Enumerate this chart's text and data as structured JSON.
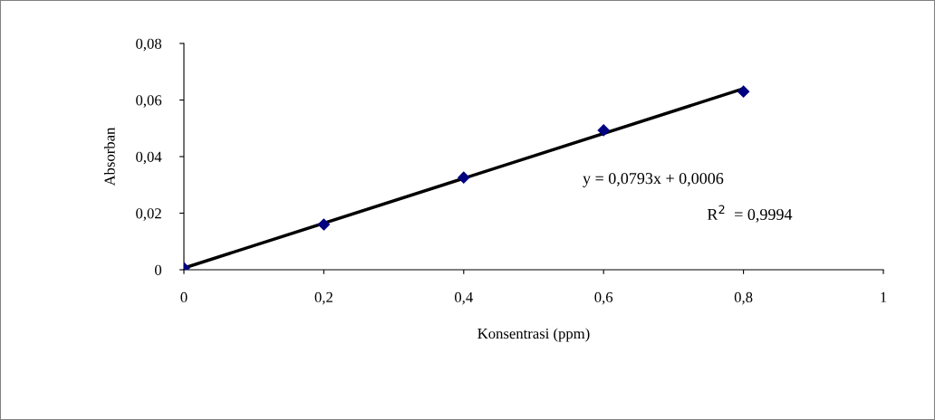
{
  "chart_data": {
    "type": "scatter",
    "xlabel": "Konsentrasi (ppm)",
    "ylabel": "Absorban",
    "grid": false,
    "legend": false,
    "series": [
      {
        "marker": "diamond",
        "color": "#000080",
        "x": [
          0,
          0.2,
          0.4,
          0.6,
          0.8
        ],
        "values": [
          0.0006,
          0.016,
          0.0326,
          0.0493,
          0.063
        ]
      },
      {
        "type": "line",
        "marker": "none",
        "color": "#000000",
        "x": [
          0,
          0.8
        ],
        "values": [
          0.0006,
          0.064
        ]
      }
    ],
    "annotations": [
      "y = 0,0793x + 0,0006",
      "R$^{2}$  = 0,9994"
    ],
    "xlim": [
      0,
      1
    ],
    "ylim": [
      0,
      0.08
    ],
    "xticks": [
      0,
      {
        "value": 0.2,
        "label": "0,2"
      },
      {
        "value": 0.4,
        "label": "0,4"
      },
      {
        "value": 0.6,
        "label": "0,6"
      },
      {
        "value": 0.8,
        "label": "0,8"
      },
      1
    ],
    "yticks": [
      0,
      {
        "value": 0.02,
        "label": "0,02"
      },
      {
        "value": 0.04,
        "label": "0,04"
      },
      {
        "value": 0.06,
        "label": "0,06"
      },
      {
        "value": 0.08,
        "label": "0,08"
      }
    ]
  }
}
